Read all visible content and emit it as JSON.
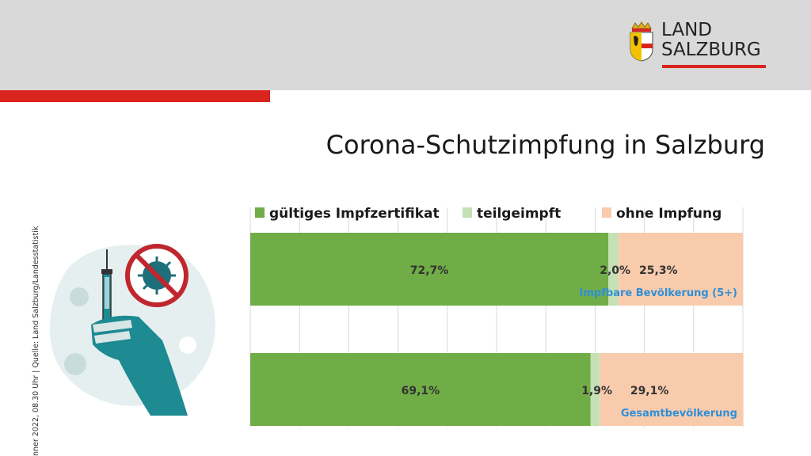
{
  "header": {
    "logo_line1": "LAND",
    "logo_line2": "SALZBURG"
  },
  "title": "Corona-Schutzimpfung in Salzburg",
  "side_note": "nner 2022, 08.30 Uhr | Quelle: Land Salzburg/Landesstatistik",
  "colors": {
    "vaccinated": "#70ad47",
    "partial": "#c5e0b4",
    "unvaccinated": "#f8cbad",
    "brand_red": "#d9251d",
    "category_label": "#2f8fd8"
  },
  "chart_data": {
    "type": "bar",
    "orientation": "horizontal",
    "stacked": true,
    "xlim": [
      0,
      100
    ],
    "grid": true,
    "legend_position": "top",
    "categories": [
      "Impfbare Bevölkerung (5+)",
      "Gesamtbevölkerung"
    ],
    "series": [
      {
        "name": "gültiges Impfzertifikat",
        "values": [
          72.7,
          69.1
        ],
        "labels": [
          "72,7%",
          "69,1%"
        ]
      },
      {
        "name": "teilgeimpft",
        "values": [
          2.0,
          1.9
        ],
        "labels": [
          "2,0%",
          "1,9%"
        ]
      },
      {
        "name": "ohne Impfung",
        "values": [
          25.3,
          29.1
        ],
        "labels": [
          "25,3%",
          "29,1%"
        ]
      }
    ]
  }
}
